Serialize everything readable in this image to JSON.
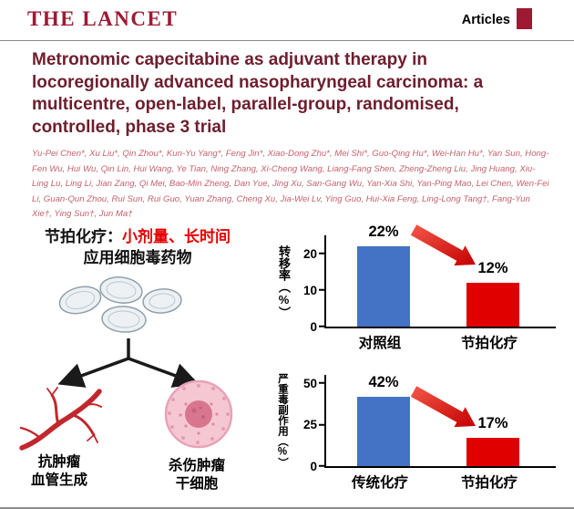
{
  "header": {
    "journal": "THE LANCET",
    "section_label": "Articles"
  },
  "article": {
    "title": "Metronomic capecitabine as adjuvant therapy in locoregionally advanced nasopharyngeal carcinoma: a multicentre, open-label, parallel-group, randomised, controlled, phase 3 trial",
    "authors": "Yu-Pei Chen*, Xu Liu*, Qin Zhou*, Kun-Yu Yang*, Feng Jin*, Xiao-Dong Zhu*, Mei Shi*, Guo-Qing Hu*, Wei-Han Hu*, Yan Sun, Hong-Fen Wu, Hui Wu, Qin Lin, Hui Wang, Ye Tian, Ning Zhang, Xi-Cheng Wang, Liang-Fang Shen, Zheng-Zheng Liu, Jing Huang, Xiu-Ling Lu, Ling Li, Jian Zang, Qi Mei, Bao-Min Zheng, Dan Yue, Jing Xu, San-Gang Wu, Yan-Xia Shi, Yan-Ping Mao, Lei Chen, Wen-Fei Li, Guan-Qun Zhou, Rui Sun, Rui Guo, Yuan Zhang, Cheng Xu, Jia-Wei Lv, Ying Guo, Hui-Xia Feng, Ling-Long Tang†, Fang-Yun Xie†, Ying Sun†, Jun Ma†"
  },
  "diagram": {
    "heading_black": "节拍化疗：",
    "heading_red": "小剂量、长时间",
    "heading_line2": "应用细胞毒药物",
    "left_caption_line1": "抗肿瘤",
    "left_caption_line2": "血管生成",
    "right_caption_line1": "杀伤肿瘤",
    "right_caption_line2": "干细胞"
  },
  "colors": {
    "lancet_maroon": "#9e1932",
    "title_maroon": "#6e1e2e",
    "author_pink": "#c5616d",
    "highlight_red": "#e60000",
    "bar_blue": "#4472c4",
    "bar_red": "#e00000"
  },
  "chart_data": [
    {
      "type": "bar",
      "ylabel": "转移率（%）",
      "categories": [
        "对照组",
        "节拍化疗"
      ],
      "values": [
        22,
        12
      ],
      "value_labels": [
        "22%",
        "12%"
      ],
      "yticks": [
        0,
        10,
        20
      ],
      "ylim": [
        0,
        25
      ],
      "bar_colors": [
        "#4472c4",
        "#e00000"
      ],
      "annotation": "decrease-arrow",
      "legend": "none",
      "grid": false
    },
    {
      "type": "bar",
      "ylabel": "严重毒副作用（%）",
      "categories": [
        "传统化疗",
        "节拍化疗"
      ],
      "values": [
        42,
        17
      ],
      "value_labels": [
        "42%",
        "17%"
      ],
      "yticks": [
        0,
        25,
        50
      ],
      "ylim": [
        0,
        55
      ],
      "bar_colors": [
        "#4472c4",
        "#e00000"
      ],
      "annotation": "decrease-arrow",
      "legend": "none",
      "grid": false
    }
  ]
}
